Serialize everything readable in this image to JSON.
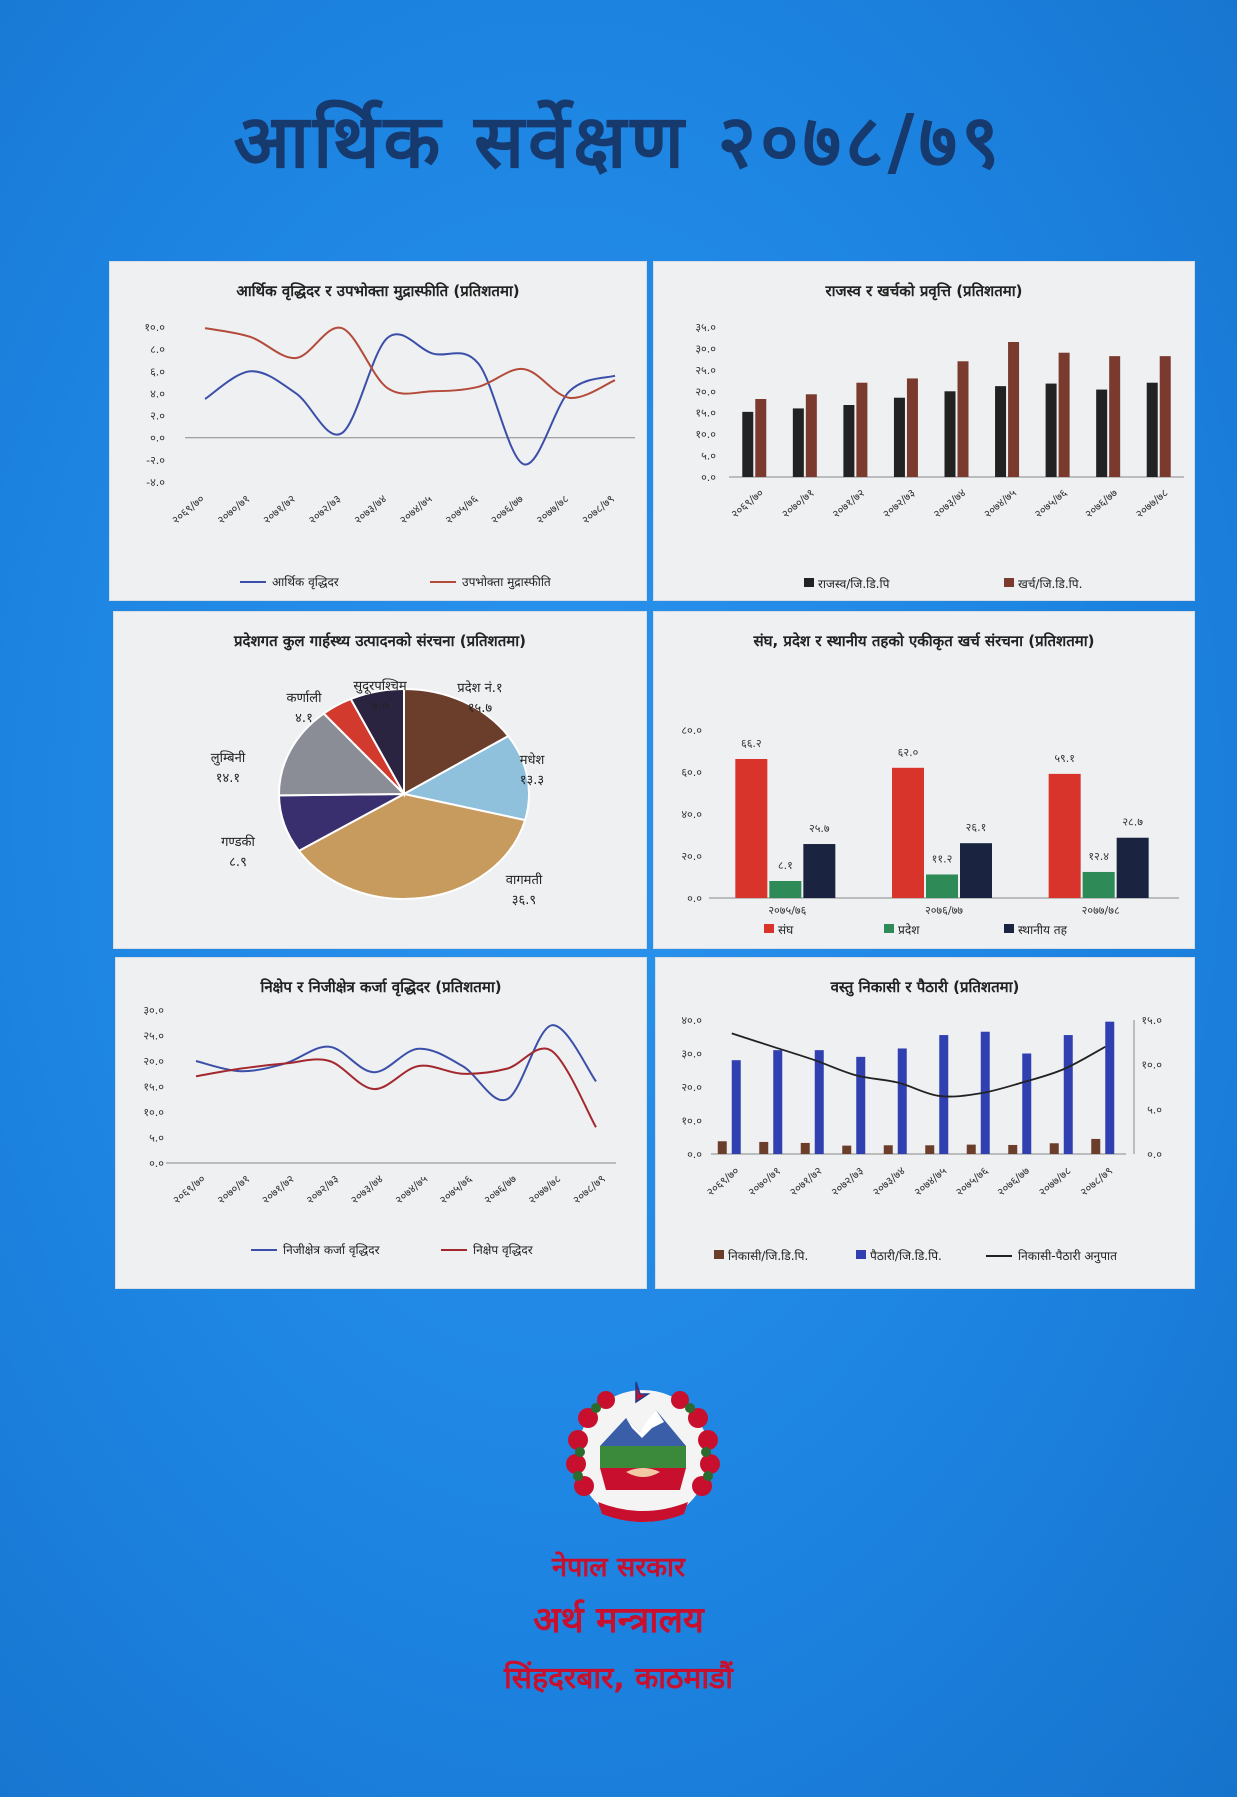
{
  "cover": {
    "title": "आर्थिक सर्वेक्षण २०७८/७९",
    "footer": {
      "government": "नेपाल सरकार",
      "ministry": "अर्थ मन्त्रालय",
      "address": "सिंहदरबार, काठमाडौं"
    },
    "colors": {
      "background": "#1d84e2",
      "title": "#173a6e",
      "footer": "#c8102e",
      "panel": "#eef0f2"
    },
    "emblem_icon": "nepal-emblem-icon"
  },
  "chart_data": [
    {
      "id": "growth",
      "type": "line",
      "title": "आर्थिक वृद्धिदर र उपभोक्ता मुद्रास्फीति (प्रतिशतमा)",
      "categories": [
        "२०६९/७०",
        "२०७०/७१",
        "२०७१/७२",
        "२०७२/७३",
        "२०७३/७४",
        "२०७४/७५",
        "२०७५/७६",
        "२०७६/७७",
        "२०७७/७८",
        "२०७८/७९"
      ],
      "yticks": [
        "१०.०",
        "८.०",
        "६.०",
        "४.०",
        "२.०",
        "०.०",
        "-२.०",
        "-४.०"
      ],
      "ylim": [
        -4,
        10
      ],
      "series": [
        {
          "name": "आर्थिक वृद्धिदर",
          "color": "#3b4fa8",
          "values": [
            3.5,
            6.0,
            4.0,
            0.4,
            9.0,
            7.6,
            6.7,
            -2.4,
            4.2,
            5.6
          ]
        },
        {
          "name": "उपभोक्ता मुद्रास्फीति",
          "color": "#b44a3a",
          "values": [
            9.9,
            9.1,
            7.2,
            9.9,
            4.5,
            4.2,
            4.6,
            6.2,
            3.6,
            5.2
          ]
        }
      ]
    },
    {
      "id": "revenue",
      "type": "bar",
      "title": "राजस्व र खर्चको प्रवृत्ति (प्रतिशतमा)",
      "categories": [
        "२०६९/७०",
        "२०७०/७१",
        "२०७१/७२",
        "२०७२/७३",
        "२०७३/७४",
        "२०७४/७५",
        "२०७५/७६",
        "२०७६/७७",
        "२०७७/७८"
      ],
      "yticks": [
        "३५.०",
        "३०.०",
        "२५.०",
        "२०.०",
        "१५.०",
        "१०.०",
        "५.०",
        "०.०"
      ],
      "ylim": [
        0,
        35
      ],
      "series": [
        {
          "name": "राजस्व/जि.डि.पि",
          "color": "#222222",
          "values": [
            15.2,
            16.0,
            16.8,
            18.5,
            20.0,
            21.2,
            21.8,
            20.4,
            22.0
          ]
        },
        {
          "name": "खर्च/जि.डि.पि.",
          "color": "#7a3a2e",
          "values": [
            18.2,
            19.3,
            22.0,
            23.0,
            27.0,
            31.5,
            29.0,
            28.2,
            28.2
          ]
        }
      ]
    },
    {
      "id": "provincial",
      "type": "pie",
      "title": "प्रदेशगत कुल गार्हस्थ्य उत्पादनको संरचना (प्रतिशतमा)",
      "slices": [
        {
          "name": "प्रदेश नं.१",
          "value_label": "१५.७",
          "value": 15.7,
          "color": "#6b3d2b"
        },
        {
          "name": "मधेश",
          "value_label": "१३.३",
          "value": 13.3,
          "color": "#8fc0dc"
        },
        {
          "name": "वागमती",
          "value_label": "३६.९",
          "value": 36.9,
          "color": "#c79a5e"
        },
        {
          "name": "गण्डकी",
          "value_label": "८.९",
          "value": 8.9,
          "color": "#3a2f6e"
        },
        {
          "name": "लुम्बिनी",
          "value_label": "१४.१",
          "value": 14.1,
          "color": "#8a8d96"
        },
        {
          "name": "कर्णाली",
          "value_label": "४.१",
          "value": 4.1,
          "color": "#d23a2e"
        },
        {
          "name": "सुदूरपश्चिम",
          "value_label": "७.०",
          "value": 7.0,
          "color": "#2b2440"
        }
      ]
    },
    {
      "id": "expenditure",
      "type": "bar",
      "title": "संघ, प्रदेश र स्थानीय तहको एकीकृत खर्च संरचना (प्रतिशतमा)",
      "categories": [
        "२०७५/७६",
        "२०७६/७७",
        "२०७७/७८"
      ],
      "yticks": [
        "८०.०",
        "६०.०",
        "४०.०",
        "२०.०",
        "०.०"
      ],
      "ylim": [
        0,
        80
      ],
      "series": [
        {
          "name": "संघ",
          "color": "#d9342b",
          "values": [
            66.2,
            62.0,
            59.1
          ],
          "labels": [
            "६६.२",
            "६२.०",
            "५९.१"
          ]
        },
        {
          "name": "प्रदेश",
          "color": "#2e8b57",
          "values": [
            8.1,
            11.2,
            12.4
          ],
          "labels": [
            "८.१",
            "११.२",
            "१२.४"
          ]
        },
        {
          "name": "स्थानीय तह",
          "color": "#1a2440",
          "values": [
            25.7,
            26.1,
            28.7
          ],
          "labels": [
            "२५.७",
            "२६.१",
            "२८.७"
          ]
        }
      ]
    },
    {
      "id": "deposit",
      "type": "line",
      "title": "निक्षेप र निजीक्षेत्र कर्जा वृद्धिदर (प्रतिशतमा)",
      "categories": [
        "२०६९/७०",
        "२०७०/७१",
        "२०७१/७२",
        "२०७२/७३",
        "२०७३/७४",
        "२०७४/७५",
        "२०७५/७६",
        "२०७६/७७",
        "२०७७/७८",
        "२०७८/७९"
      ],
      "yticks": [
        "३०.०",
        "२५.०",
        "२०.०",
        "१५.०",
        "१०.०",
        "५.०",
        "०.०"
      ],
      "ylim": [
        0,
        30
      ],
      "series": [
        {
          "name": "निजीक्षेत्र कर्जा वृद्धिदर",
          "color": "#3b4fa8",
          "values": [
            20.0,
            18.0,
            19.5,
            22.8,
            17.8,
            22.4,
            19.0,
            12.5,
            27.0,
            16.0
          ]
        },
        {
          "name": "निक्षेप वृद्धिदर",
          "color": "#a3282e",
          "values": [
            17.0,
            18.5,
            19.5,
            20.0,
            14.5,
            19.0,
            17.5,
            18.5,
            22.0,
            7.0
          ]
        }
      ]
    },
    {
      "id": "trade",
      "type": "bar",
      "title": "वस्तु निकासी र पैठारी (प्रतिशतमा)",
      "categories": [
        "२०६९/७०",
        "२०७०/७१",
        "२०७१/७२",
        "२०७२/७३",
        "२०७३/७४",
        "२०७४/७५",
        "२०७५/७६",
        "२०७६/७७",
        "२०७७/७८",
        "२०७८/७९"
      ],
      "yticks": [
        "४०.०",
        "३०.०",
        "२०.०",
        "१०.०",
        "०.०"
      ],
      "ylim": [
        0,
        40
      ],
      "y2ticks": [
        "१५.०",
        "१०.०",
        "५.०",
        "०.०"
      ],
      "y2lim": [
        0,
        15
      ],
      "series": [
        {
          "name": "निकासी/जि.डि.पि.",
          "color": "#6b3d2b",
          "values": [
            3.8,
            3.6,
            3.3,
            2.5,
            2.6,
            2.6,
            2.8,
            2.7,
            3.2,
            4.5
          ]
        },
        {
          "name": "पैठारी/जि.डि.पि.",
          "color": "#3140b0",
          "values": [
            28.0,
            31.0,
            31.0,
            29.0,
            31.5,
            35.5,
            36.5,
            30.0,
            35.5,
            39.5
          ]
        },
        {
          "name": "निकासी-पैठारी अनुपात",
          "color": "#222222",
          "type": "line",
          "axis": "right",
          "values": [
            13.5,
            12.0,
            10.5,
            8.8,
            8.0,
            6.5,
            6.8,
            8.0,
            9.5,
            12.0
          ]
        }
      ]
    }
  ]
}
